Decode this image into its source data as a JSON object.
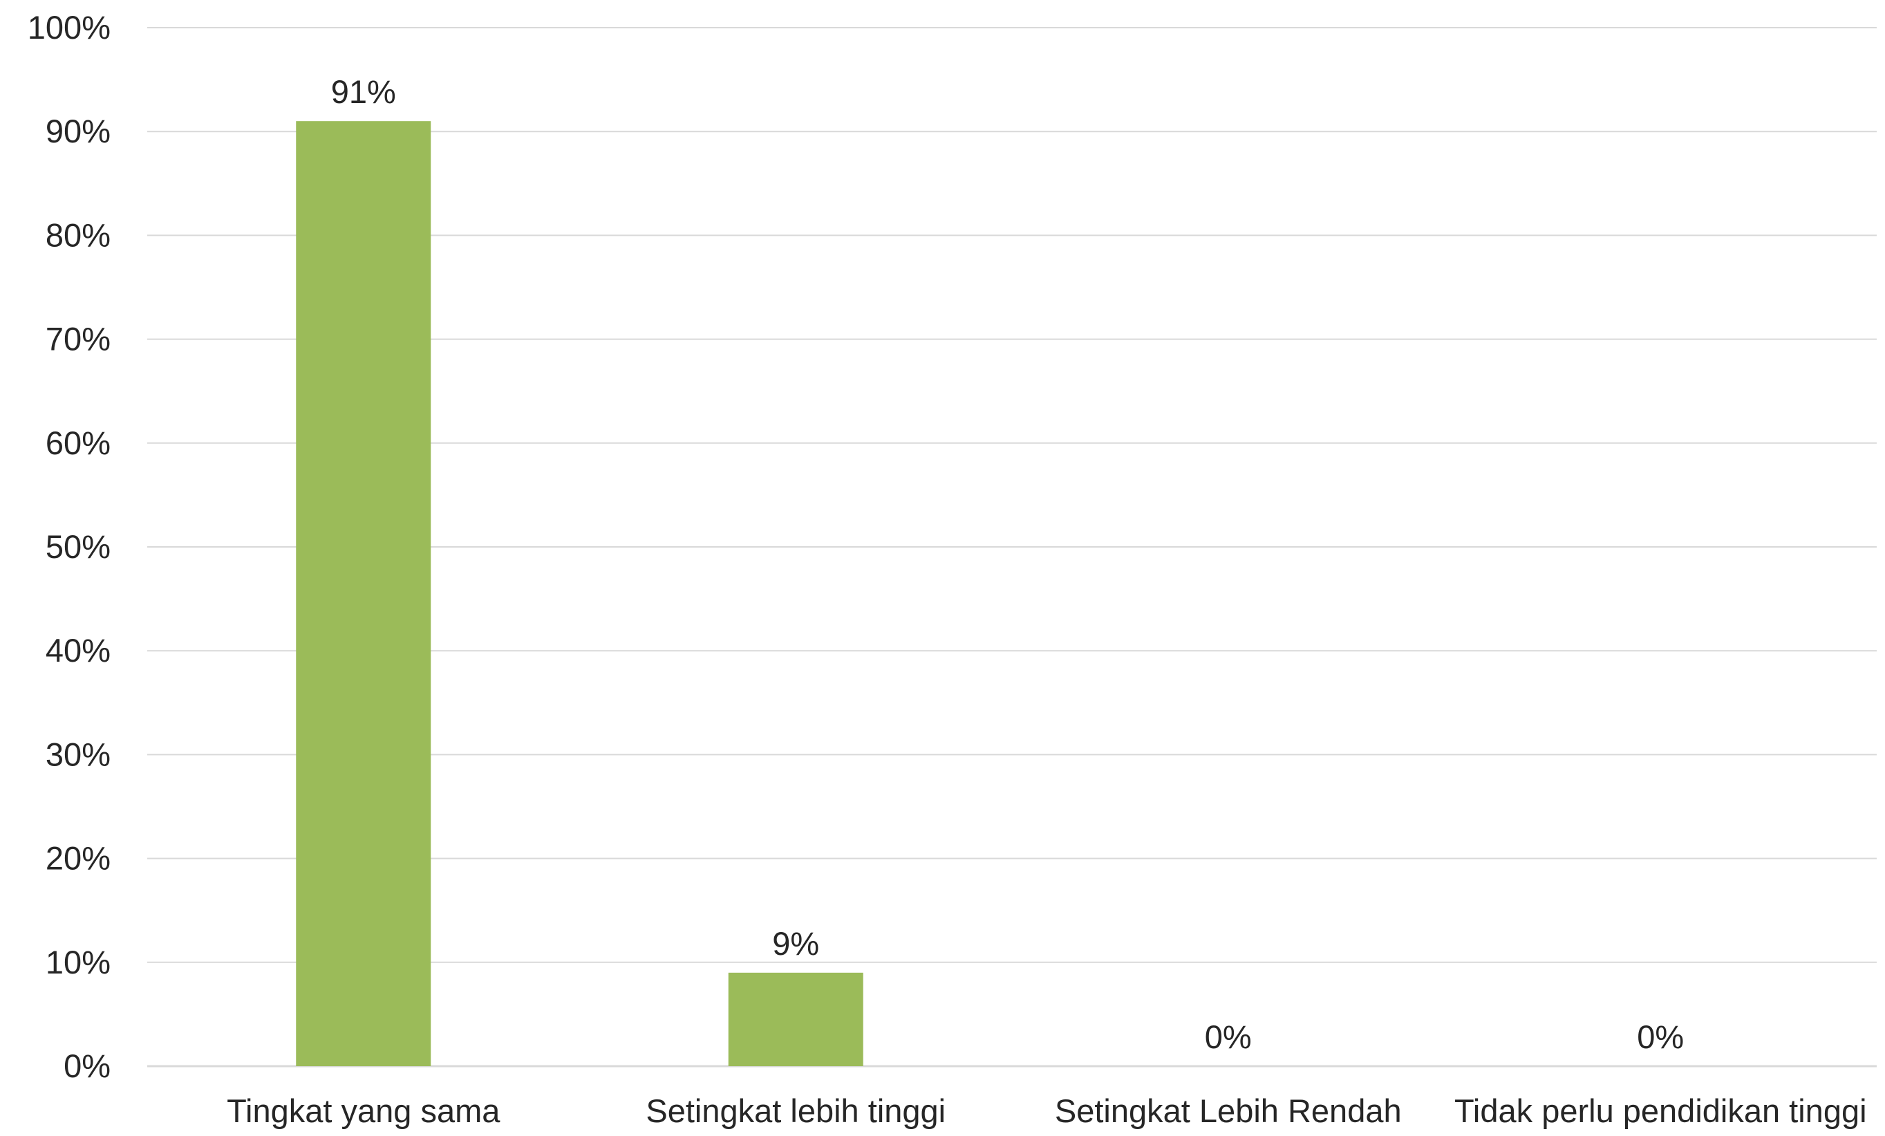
{
  "chart_data": {
    "type": "bar",
    "categories": [
      "Tingkat yang sama",
      "Setingkat lebih tinggi",
      "Setingkat Lebih Rendah",
      "Tidak perlu pendidikan tinggi"
    ],
    "values": [
      91,
      9,
      0,
      0
    ],
    "data_labels": [
      "91%",
      "9%",
      "0%",
      "0%"
    ],
    "y_ticks": [
      "0%",
      "10%",
      "20%",
      "30%",
      "40%",
      "50%",
      "60%",
      "70%",
      "80%",
      "90%",
      "100%"
    ],
    "ylim": [
      0,
      100
    ],
    "grid": true,
    "legend": "none",
    "bar_color": "#9bbb59"
  }
}
